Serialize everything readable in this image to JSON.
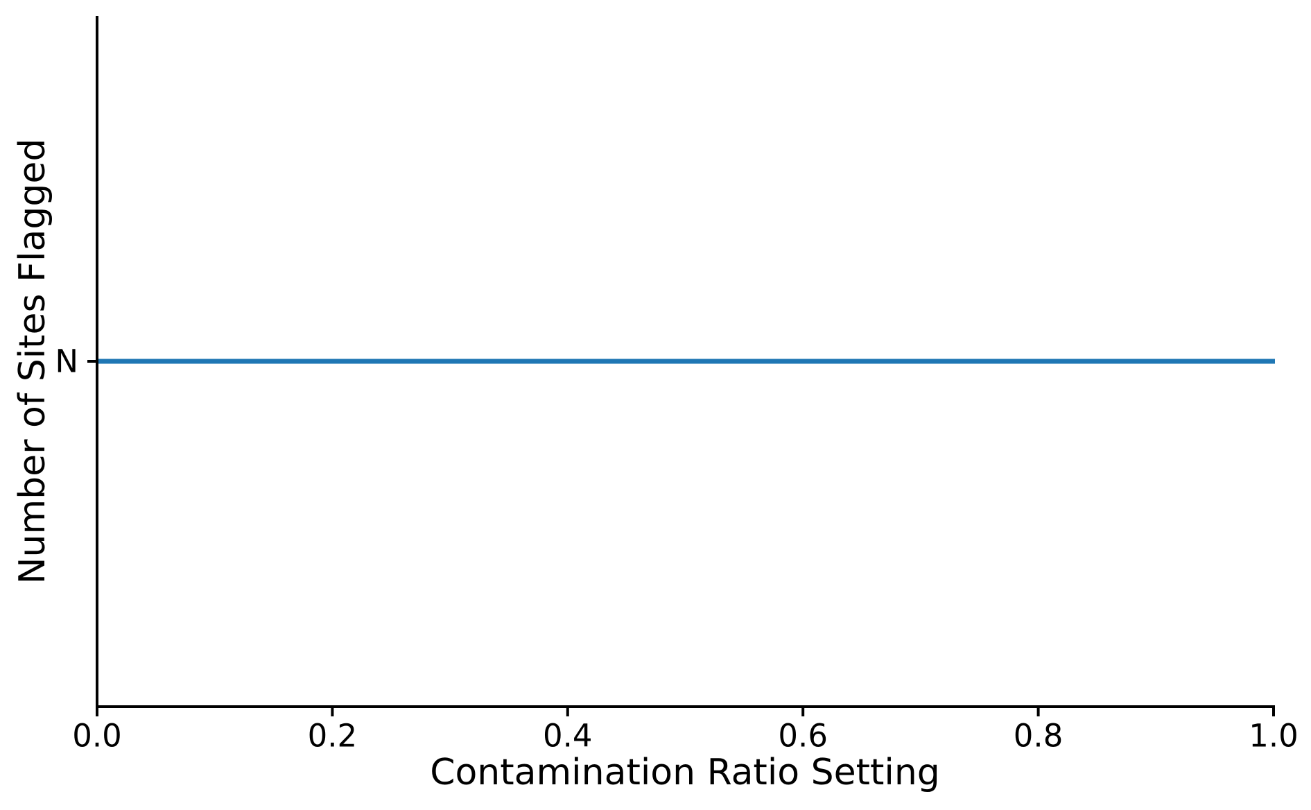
{
  "figure": {
    "background_color": "#ffffff",
    "axis_color": "#000000",
    "text_color": "#000000"
  },
  "chart_data": {
    "type": "line",
    "title": "",
    "xlabel": "Contamination Ratio Setting",
    "ylabel": "Number of Sites Flagged",
    "xlim": [
      0.0,
      1.0
    ],
    "x_ticks": [
      {
        "value": 0.0,
        "label": "0.0"
      },
      {
        "value": 0.2,
        "label": "0.2"
      },
      {
        "value": 0.4,
        "label": "0.4"
      },
      {
        "value": 0.6,
        "label": "0.6"
      },
      {
        "value": 0.8,
        "label": "0.8"
      },
      {
        "value": 1.0,
        "label": "1.0"
      }
    ],
    "y_ticks": [
      {
        "fraction_from_top": 0.5,
        "label": "N"
      }
    ],
    "grid": false,
    "legend": null,
    "series": [
      {
        "name": "sites_flagged",
        "color": "#1f77b4",
        "line_width": 7,
        "x": [
          0.0,
          1.0
        ],
        "y": [
          "N",
          "N"
        ]
      }
    ]
  }
}
